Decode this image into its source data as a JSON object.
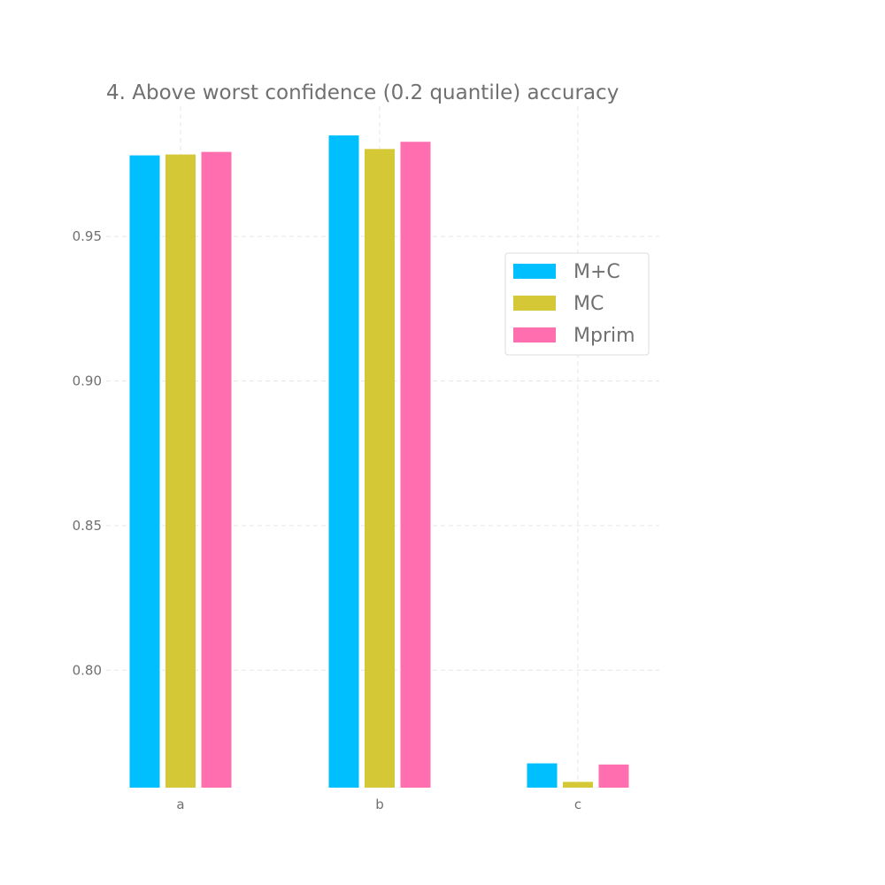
{
  "chart_data": {
    "type": "bar",
    "title": "4. Above worst confidence (0.2 quantile) accuracy",
    "xlabel": "",
    "ylabel": "",
    "categories": [
      "a",
      "b",
      "c"
    ],
    "ylim": [
      0.7594,
      0.995
    ],
    "yticks": [
      0.8,
      0.85,
      0.9,
      0.95
    ],
    "ytick_labels": [
      "0.80",
      "0.85",
      "0.90",
      "0.95"
    ],
    "grid": true,
    "legend_position": "upper right",
    "series": [
      {
        "name": "M+C",
        "color": "#00bfff",
        "values": [
          0.978,
          0.9849,
          0.7678
        ]
      },
      {
        "name": "MC",
        "color": "#d4c836",
        "values": [
          0.9783,
          0.9802,
          0.7614
        ]
      },
      {
        "name": "Mprim",
        "color": "#ff6eaf",
        "values": [
          0.9792,
          0.9827,
          0.7674
        ]
      }
    ]
  }
}
